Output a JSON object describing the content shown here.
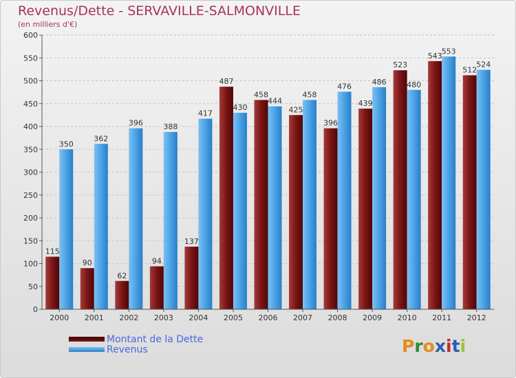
{
  "title": "Revenus/Dette - SERVAVILLE-SALMONVILLE",
  "subtitle": "(en milliers d'€)",
  "colors": {
    "title": "#a7325b",
    "dette": "#7a1010",
    "revenus": "#4aa2e6",
    "legend_text": "#4b67e0"
  },
  "legend": [
    {
      "label": "Montant de la Dette",
      "color": "#5a0a0a"
    },
    {
      "label": "Revenus",
      "color": "#4aa2e6"
    }
  ],
  "logo": {
    "text": "Proxiti",
    "letter_colors": [
      "#e58c1a",
      "#2d8a3c",
      "#e58c1a",
      "#2a5fb0",
      "#c22d2d",
      "#2a5fb0",
      "#9ac43a"
    ]
  },
  "chart_data": {
    "type": "bar",
    "categories": [
      "2000",
      "2001",
      "2002",
      "2003",
      "2004",
      "2005",
      "2006",
      "2007",
      "2008",
      "2009",
      "2010",
      "2011",
      "2012"
    ],
    "series": [
      {
        "name": "Montant de la Dette",
        "values": [
          115,
          90,
          62,
          94,
          137,
          487,
          458,
          425,
          396,
          439,
          523,
          543,
          512
        ]
      },
      {
        "name": "Revenus",
        "values": [
          350,
          362,
          396,
          388,
          417,
          430,
          444,
          458,
          476,
          486,
          480,
          553,
          524
        ]
      }
    ],
    "yticks": [
      0,
      50,
      100,
      150,
      200,
      250,
      300,
      350,
      400,
      450,
      500,
      550,
      600
    ],
    "ylim": [
      0,
      600
    ],
    "grid": true
  }
}
